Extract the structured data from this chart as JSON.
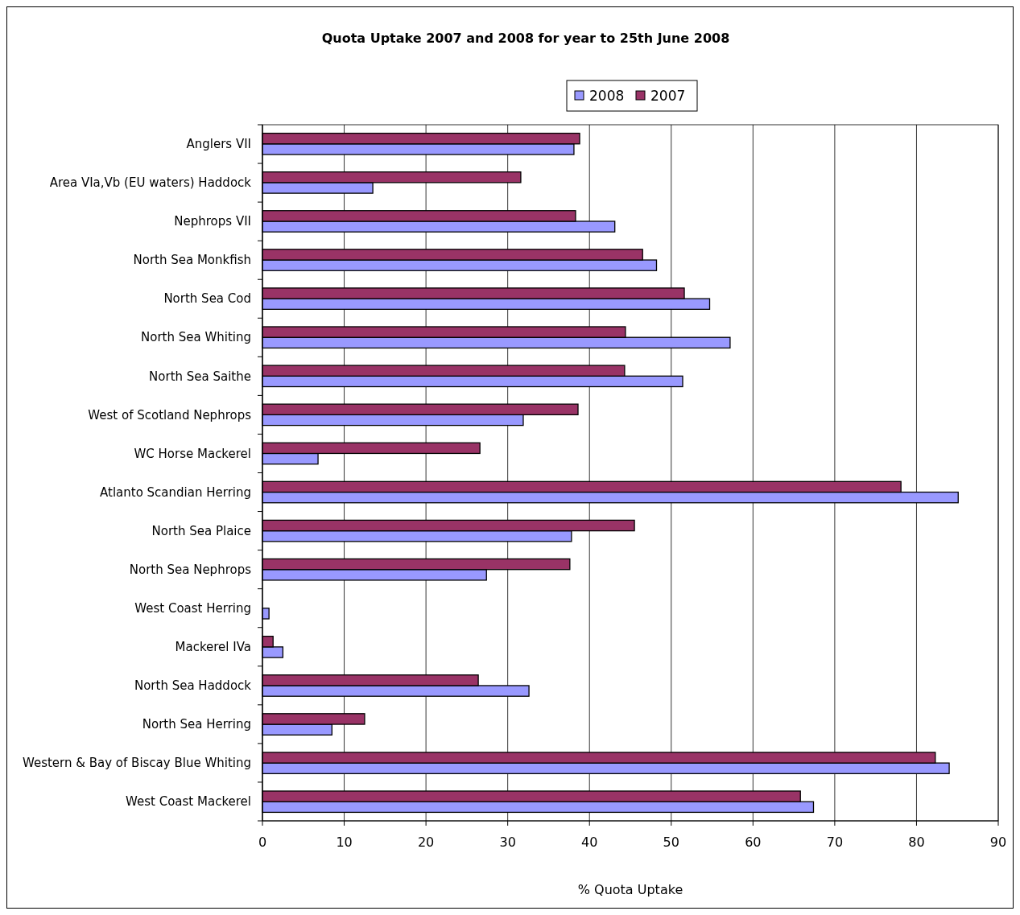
{
  "chart_data": {
    "type": "bar",
    "orientation": "horizontal",
    "title": "Quota Uptake 2007 and 2008 for year to 25th June 2008",
    "xlabel": "% Quota Uptake",
    "categories": [
      "Anglers VII",
      "Area VIa,Vb (EU waters) Haddock",
      "Nephrops VII",
      "North Sea Monkfish",
      "North Sea Cod",
      "North Sea Whiting",
      "North Sea Saithe",
      "West of Scotland Nephrops",
      "WC Horse Mackerel",
      "Atlanto Scandian Herring",
      "North Sea Plaice",
      "North Sea Nephrops",
      "West Coast Herring",
      "Mackerel IVa",
      "North Sea Haddock",
      "North Sea Herring",
      "Western & Bay of Biscay Blue Whiting",
      "West Coast Mackerel"
    ],
    "series": [
      {
        "name": "2008",
        "color": "#9999ff",
        "values": [
          38.1,
          13.5,
          43.1,
          48.2,
          54.7,
          57.2,
          51.4,
          31.9,
          6.8,
          85.1,
          37.8,
          27.4,
          0.8,
          2.5,
          32.6,
          8.5,
          84.0,
          67.4
        ]
      },
      {
        "name": "2007",
        "color": "#993366",
        "values": [
          38.8,
          31.6,
          38.3,
          46.5,
          51.6,
          44.4,
          44.3,
          38.6,
          26.6,
          78.1,
          45.5,
          37.6,
          null,
          1.3,
          26.4,
          12.5,
          82.3,
          65.8
        ]
      }
    ],
    "xlim": [
      0,
      90
    ],
    "xticks": [
      0,
      10,
      20,
      30,
      40,
      50,
      60,
      70,
      80,
      90
    ],
    "grid": "x",
    "legend": "top"
  }
}
